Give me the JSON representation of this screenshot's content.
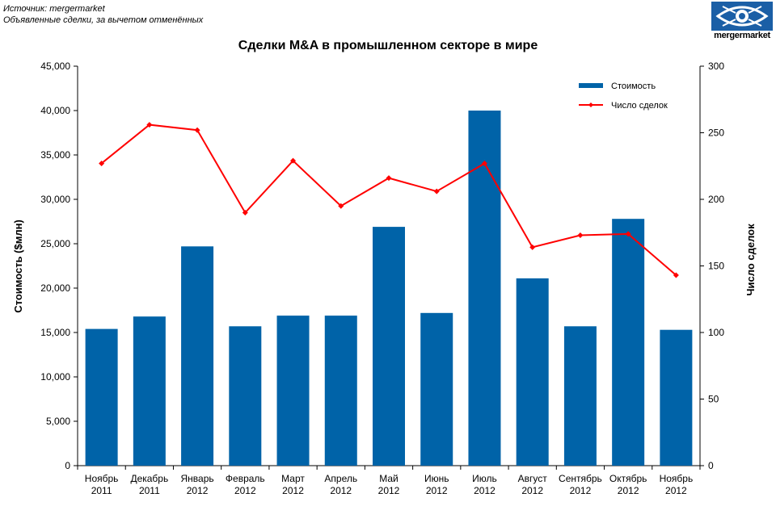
{
  "source": {
    "line1": "Источник: mergermarket",
    "line2": "Объявленные сделки, за вычетом отменённых"
  },
  "logo": {
    "text": "mergermarket",
    "icon": "eye-icon"
  },
  "chart_data": {
    "type": "bar+line",
    "title": "Сделки M&A  в промышленном секторе в мире",
    "categories": [
      [
        "Ноябрь",
        "2011"
      ],
      [
        "Декабрь",
        "2011"
      ],
      [
        "Январь",
        "2012"
      ],
      [
        "Февраль",
        "2012"
      ],
      [
        "Март",
        "2012"
      ],
      [
        "Апрель",
        "2012"
      ],
      [
        "Май",
        "2012"
      ],
      [
        "Июнь",
        "2012"
      ],
      [
        "Июль",
        "2012"
      ],
      [
        "Август",
        "2012"
      ],
      [
        "Сентябрь",
        "2012"
      ],
      [
        "Октябрь",
        "2012"
      ],
      [
        "Ноябрь",
        "2012"
      ]
    ],
    "series": [
      {
        "name": "Стоимость",
        "type": "bar",
        "axis": "left",
        "color": "#0063a8",
        "values": [
          15400,
          16800,
          24700,
          15700,
          16900,
          16900,
          26900,
          17200,
          40000,
          21100,
          15700,
          27800,
          15300
        ]
      },
      {
        "name": "Число сделок",
        "type": "line",
        "axis": "right",
        "color": "#ff0000",
        "values": [
          227,
          256,
          252,
          190,
          229,
          195,
          216,
          206,
          227,
          164,
          173,
          174,
          143
        ]
      }
    ],
    "ylabel": "Стоимость ($млн)",
    "y2label": "Число сделок",
    "ylim": [
      0,
      45000
    ],
    "y2lim": [
      0,
      300
    ],
    "yticks": [
      "0",
      "5,000",
      "10,000",
      "15,000",
      "20,000",
      "25,000",
      "30,000",
      "35,000",
      "40,000",
      "45,000"
    ],
    "y2ticks": [
      "0",
      "50",
      "100",
      "150",
      "200",
      "250",
      "300"
    ],
    "legend_position": "top-right",
    "grid": false
  }
}
